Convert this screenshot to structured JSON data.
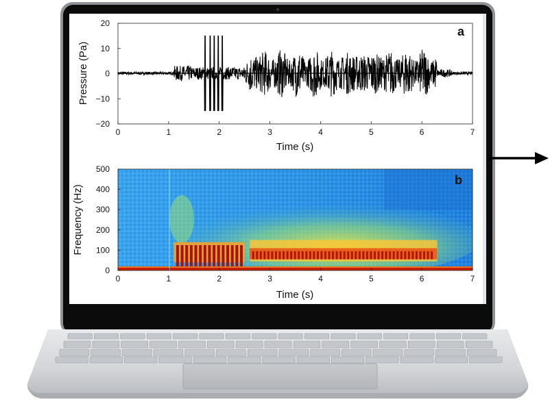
{
  "panel_a": {
    "letter": "a",
    "ylabel": "Pressure (Pa)",
    "xlabel": "Time (s)",
    "x_ticks": [
      "0",
      "1",
      "2",
      "3",
      "4",
      "5",
      "6",
      "7"
    ],
    "y_ticks": [
      "20",
      "10",
      "0",
      "−10",
      "−20"
    ],
    "xlim": [
      0,
      7
    ],
    "ylim": [
      -20,
      20
    ]
  },
  "panel_b": {
    "letter": "b",
    "ylabel": "Frequency (Hz)",
    "xlabel": "Time (s)",
    "x_ticks": [
      "0",
      "1",
      "2",
      "3",
      "4",
      "5",
      "6",
      "7"
    ],
    "y_ticks": [
      "500",
      "400",
      "300",
      "200",
      "100",
      "0"
    ],
    "xlim": [
      0,
      7
    ],
    "ylim": [
      0,
      500
    ]
  },
  "colors": {
    "laptop_bezel": "#0b0b0b",
    "laptop_body": "#d9dbdd",
    "waveform": "#000000",
    "spectrogram_background": "#1e90e0",
    "spectrogram_hot": "#c81e0a",
    "arrow": "#000000"
  },
  "icons": {
    "arrow": "arrow-right-icon"
  }
}
